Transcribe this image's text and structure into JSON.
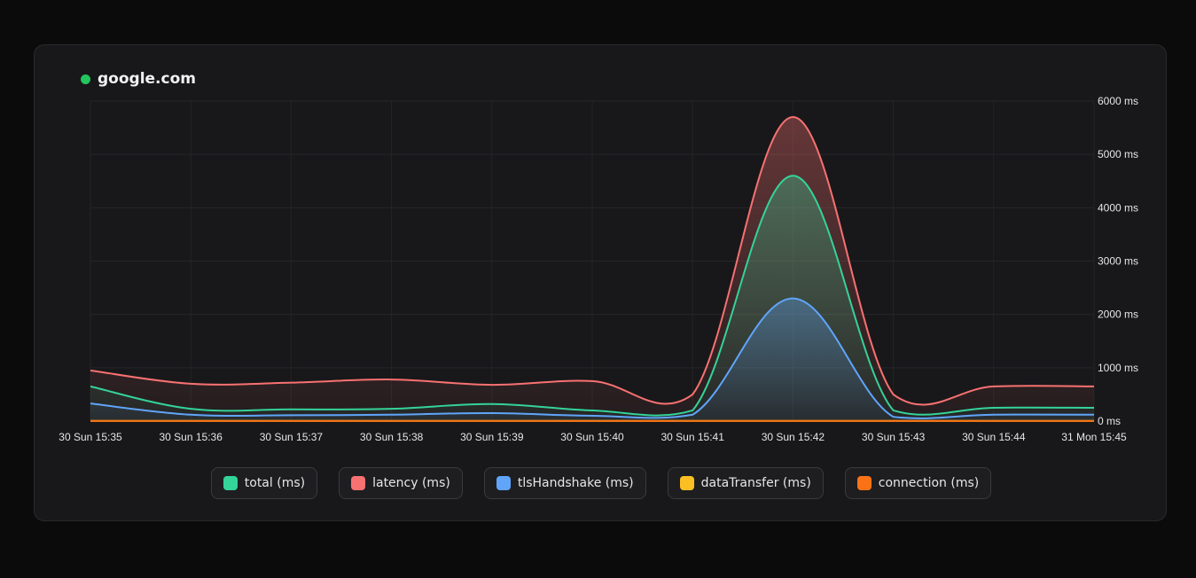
{
  "card": {
    "title": "google.com",
    "status_color": "#22c55e"
  },
  "chart_data": {
    "type": "area",
    "x": [
      "30 Sun 15:35",
      "30 Sun 15:36",
      "30 Sun 15:37",
      "30 Sun 15:38",
      "30 Sun 15:39",
      "30 Sun 15:40",
      "30 Sun 15:41",
      "30 Sun 15:42",
      "30 Sun 15:43",
      "30 Sun 15:44",
      "31 Mon 15:45"
    ],
    "y_tick_labels": [
      "0 ms",
      "1000 ms",
      "2000 ms",
      "3000 ms",
      "4000 ms",
      "5000 ms",
      "6000 ms"
    ],
    "ylim": [
      0,
      6000
    ],
    "y_axis_position": "right",
    "grid": true,
    "legend_position": "bottom",
    "series": [
      {
        "name": "latency (ms)",
        "color": "#f87171",
        "values": [
          950,
          700,
          720,
          780,
          680,
          750,
          500,
          5700,
          500,
          650,
          650
        ]
      },
      {
        "name": "total (ms)",
        "color": "#34d399",
        "values": [
          650,
          230,
          220,
          230,
          320,
          200,
          200,
          4600,
          200,
          250,
          250
        ]
      },
      {
        "name": "tlsHandshake (ms)",
        "color": "#60a5fa",
        "values": [
          330,
          120,
          110,
          120,
          150,
          100,
          120,
          2300,
          80,
          120,
          120
        ]
      },
      {
        "name": "dataTransfer (ms)",
        "color": "#fbbf24",
        "values": [
          5,
          5,
          5,
          5,
          5,
          5,
          5,
          5,
          5,
          5,
          5
        ]
      },
      {
        "name": "connection (ms)",
        "color": "#f97316",
        "values": [
          2,
          2,
          2,
          2,
          2,
          2,
          2,
          2,
          2,
          2,
          2
        ]
      }
    ]
  },
  "legend": [
    {
      "label": "total (ms)",
      "color": "#34d399"
    },
    {
      "label": "latency (ms)",
      "color": "#f87171"
    },
    {
      "label": "tlsHandshake (ms)",
      "color": "#60a5fa"
    },
    {
      "label": "dataTransfer (ms)",
      "color": "#fbbf24"
    },
    {
      "label": "connection (ms)",
      "color": "#f97316"
    }
  ]
}
